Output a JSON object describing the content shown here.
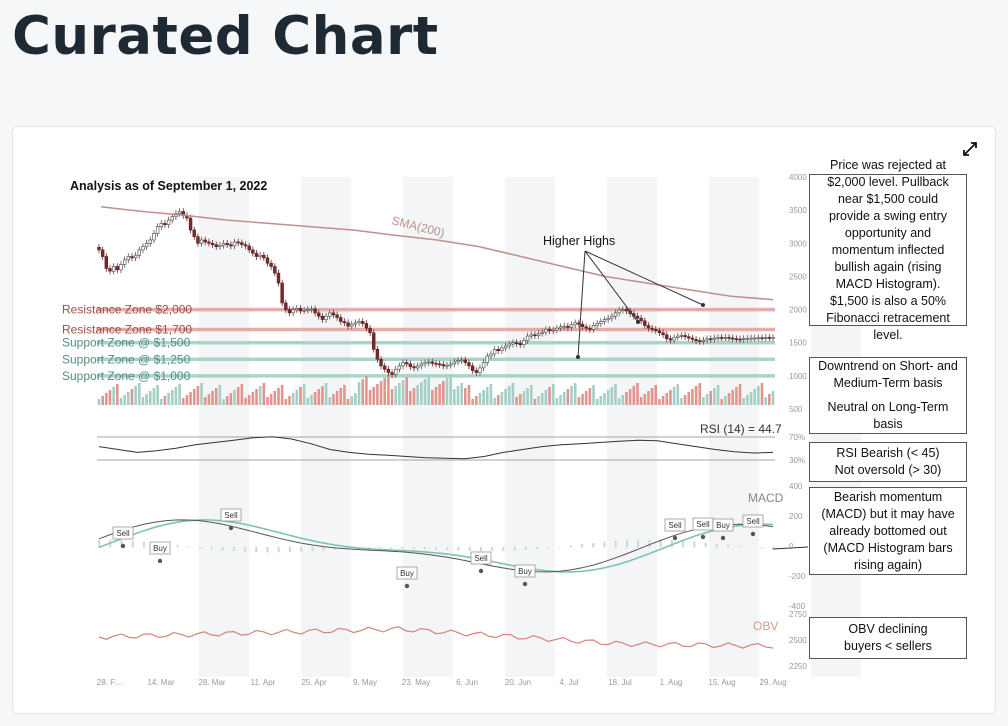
{
  "page": {
    "title": "Curated Chart"
  },
  "card": {
    "expand_icon": "expand-diagonal-icon"
  },
  "chart_data": {
    "type": "candlestick-with-indicators",
    "title": "Analysis as of September 1, 2022",
    "x_ticks": [
      "28. F…",
      "14. Mar",
      "28. Mar",
      "11. Apr",
      "25. Apr",
      "9. May",
      "23. May",
      "6. Jun",
      "20. Jun",
      "4. Jul",
      "18. Jul",
      "1. Aug",
      "15. Aug",
      "29. Aug"
    ],
    "price_axis": {
      "ticks": [
        4000,
        3500,
        3000,
        2500,
        2000,
        1500,
        1000,
        500
      ]
    },
    "price_series": {
      "x": [
        0,
        1,
        2,
        3,
        4,
        5,
        6,
        7,
        8,
        9,
        10,
        11,
        12,
        13,
        14,
        15,
        16,
        17,
        18,
        19,
        20,
        21,
        22,
        23,
        24,
        25,
        26,
        27,
        28,
        29,
        30,
        31,
        32,
        33,
        34,
        35,
        36,
        37,
        38,
        39,
        40,
        41,
        42,
        43,
        44,
        45,
        46,
        47,
        48,
        49,
        50,
        51,
        52,
        53,
        54,
        55,
        56,
        57,
        58,
        59,
        60,
        61,
        62,
        63,
        64,
        65,
        66,
        67,
        68,
        69,
        70,
        71,
        72,
        73,
        74,
        75,
        76,
        77,
        78,
        79,
        80,
        81,
        82,
        83,
        84,
        85,
        86,
        87,
        88,
        89,
        90,
        91,
        92,
        93,
        94,
        95,
        96,
        97,
        98,
        99,
        100,
        101,
        102,
        103,
        104,
        105,
        106,
        107,
        108,
        109,
        110,
        111,
        112,
        113,
        114,
        115,
        116,
        117,
        118,
        119,
        120,
        121,
        122,
        123,
        124,
        125,
        126,
        127,
        128,
        129,
        130,
        131,
        132,
        133,
        134,
        135,
        136,
        137,
        138,
        139,
        140,
        141,
        142,
        143,
        144,
        145,
        146,
        147,
        148,
        149,
        150,
        151,
        152,
        153,
        154,
        155,
        156,
        157,
        158,
        159,
        160,
        161,
        162,
        163,
        164,
        165,
        166,
        167,
        168,
        169,
        170,
        171,
        172,
        173,
        174,
        175,
        176,
        177,
        178,
        179,
        180,
        181,
        182,
        183,
        184
      ],
      "close": [
        2900,
        2800,
        2620,
        2580,
        2650,
        2600,
        2680,
        2750,
        2800,
        2780,
        2820,
        2900,
        2950,
        3000,
        3050,
        3150,
        3250,
        3300,
        3280,
        3350,
        3400,
        3450,
        3480,
        3420,
        3380,
        3200,
        3100,
        3000,
        3050,
        3020,
        3000,
        2980,
        2950,
        2970,
        3000,
        2980,
        2960,
        3020,
        3010,
        2980,
        2960,
        2900,
        2850,
        2800,
        2820,
        2780,
        2700,
        2650,
        2550,
        2400,
        2100,
        2000,
        1950,
        2000,
        2020,
        1980,
        1990,
        2000,
        2010,
        1950,
        1900,
        1850,
        1900,
        1950,
        1920,
        1880,
        1820,
        1800,
        1750,
        1780,
        1800,
        1820,
        1790,
        1720,
        1650,
        1400,
        1250,
        1150,
        1100,
        1050,
        1020,
        1100,
        1150,
        1200,
        1180,
        1140,
        1120,
        1150,
        1180,
        1200,
        1210,
        1190,
        1180,
        1170,
        1150,
        1160,
        1180,
        1210,
        1230,
        1240,
        1200,
        1150,
        1080,
        1050,
        1120,
        1200,
        1300,
        1330,
        1400,
        1380,
        1420,
        1450,
        1480,
        1500,
        1490,
        1470,
        1530,
        1600,
        1620,
        1610,
        1640,
        1660,
        1700,
        1680,
        1690,
        1720,
        1740,
        1750,
        1730,
        1770,
        1800,
        1780,
        1740,
        1720,
        1700,
        1760,
        1790,
        1820,
        1850,
        1870,
        1900,
        1950,
        1990,
        2000,
        1980,
        1940,
        1900,
        1870,
        1830,
        1760,
        1720,
        1700,
        1680,
        1650,
        1620,
        1560,
        1540,
        1580,
        1600,
        1610,
        1590,
        1570,
        1550,
        1530,
        1520,
        1540,
        1560,
        1550,
        1570,
        1580,
        1575,
        1580,
        1570,
        1560,
        1555,
        1550,
        1560,
        1565,
        1570,
        1570,
        1575,
        1570,
        1580,
        1575,
        1580
      ]
    },
    "sma200_label": "SMA(200)",
    "sma200": [
      3550,
      3480,
      3420,
      3350,
      3300,
      3250,
      3200,
      3120,
      3050,
      2950,
      2800,
      2650,
      2500,
      2400,
      2300,
      2200,
      2150
    ],
    "zones": [
      {
        "label": "Resistance Zone  $2,000",
        "value": 2000,
        "kind": "resistance"
      },
      {
        "label": "Resistance Zone  $1,700",
        "value": 1700,
        "kind": "resistance"
      },
      {
        "label": "Support Zone @ $1,500",
        "value": 1500,
        "kind": "support"
      },
      {
        "label": "Support Zone @ $1,250",
        "value": 1250,
        "kind": "support"
      },
      {
        "label": "Support Zone @ $1,000",
        "value": 1000,
        "kind": "support"
      }
    ],
    "higher_highs_label": "Higher Highs",
    "rsi": {
      "label": "RSI (14) = 44.7",
      "levels": [
        "70%",
        "30%"
      ],
      "values": [
        55,
        50,
        45,
        48,
        52,
        58,
        62,
        66,
        70,
        72,
        68,
        60,
        50,
        45,
        42,
        40,
        38,
        36,
        35,
        34,
        38,
        45,
        50,
        55,
        58,
        60,
        62,
        64,
        66,
        65,
        60,
        55,
        50,
        46,
        44,
        45
      ]
    },
    "macd": {
      "label": "MACD",
      "ticks": [
        "400",
        "200",
        "0",
        "-200",
        "-400"
      ],
      "signals": [
        "Sell",
        "Buy",
        "Sell",
        "Buy",
        "Sell",
        "Buy",
        "Sell",
        "Sell",
        "Buy",
        "Sell"
      ]
    },
    "obv": {
      "label": "OBV",
      "ticks": [
        "2750",
        "2500",
        "2250"
      ]
    },
    "volume_ticks": [
      "1000",
      "500"
    ]
  },
  "notes": {
    "price": "Price was rejected at $2,000 level. Pullback near $1,500 could provide a swing entry opportunity and momentum inflected bullish again (rising MACD Histogram).  $1,500 is also a 50% Fibonacci retracement level.",
    "trend_1": "Downtrend on Short- and Medium-Term basis",
    "trend_2": "Neutral on Long-Term basis",
    "rsi": "RSI Bearish (< 45)",
    "rsi_2": "Not oversold (> 30)",
    "macd": "Bearish momentum (MACD) but it may have already bottomed out (MACD Histogram bars rising again)",
    "obv": "OBV declining",
    "obv_2": "buyers < sellers"
  },
  "colors": {
    "resistance": "#e8aaa6",
    "support": "#a9d4cb",
    "up": "#a3cfc5",
    "down": "#e2958f",
    "band": "#e9ecef",
    "sma": "#c0908c"
  }
}
